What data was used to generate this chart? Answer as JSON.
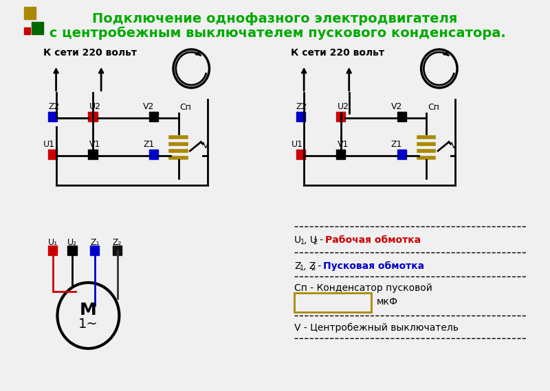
{
  "title_line1": "Подключение однофазного электродвигателя",
  "title_line2": " с центробежным выключателем пускового конденсатора.",
  "title_color": "#00aa00",
  "bg_color": "#f0f0f0",
  "red_color": "#cc0000",
  "blue_color": "#0000cc",
  "dark_green": "#006600",
  "yellow_color": "#ccaa00",
  "black_color": "#000000",
  "label_220": "К сети 220 вольт",
  "legend_U": "U1, U2 - ",
  "legend_U_colored": "Рабочая обмотка",
  "legend_Z": "Z1, Z2 - ",
  "legend_Z_colored": "Пусковая обмотка",
  "legend_Cp": "Сп - Конденсатор пусковой",
  "legend_V": "V - Центробежный выключатель",
  "legend_mkF": "мкФ"
}
